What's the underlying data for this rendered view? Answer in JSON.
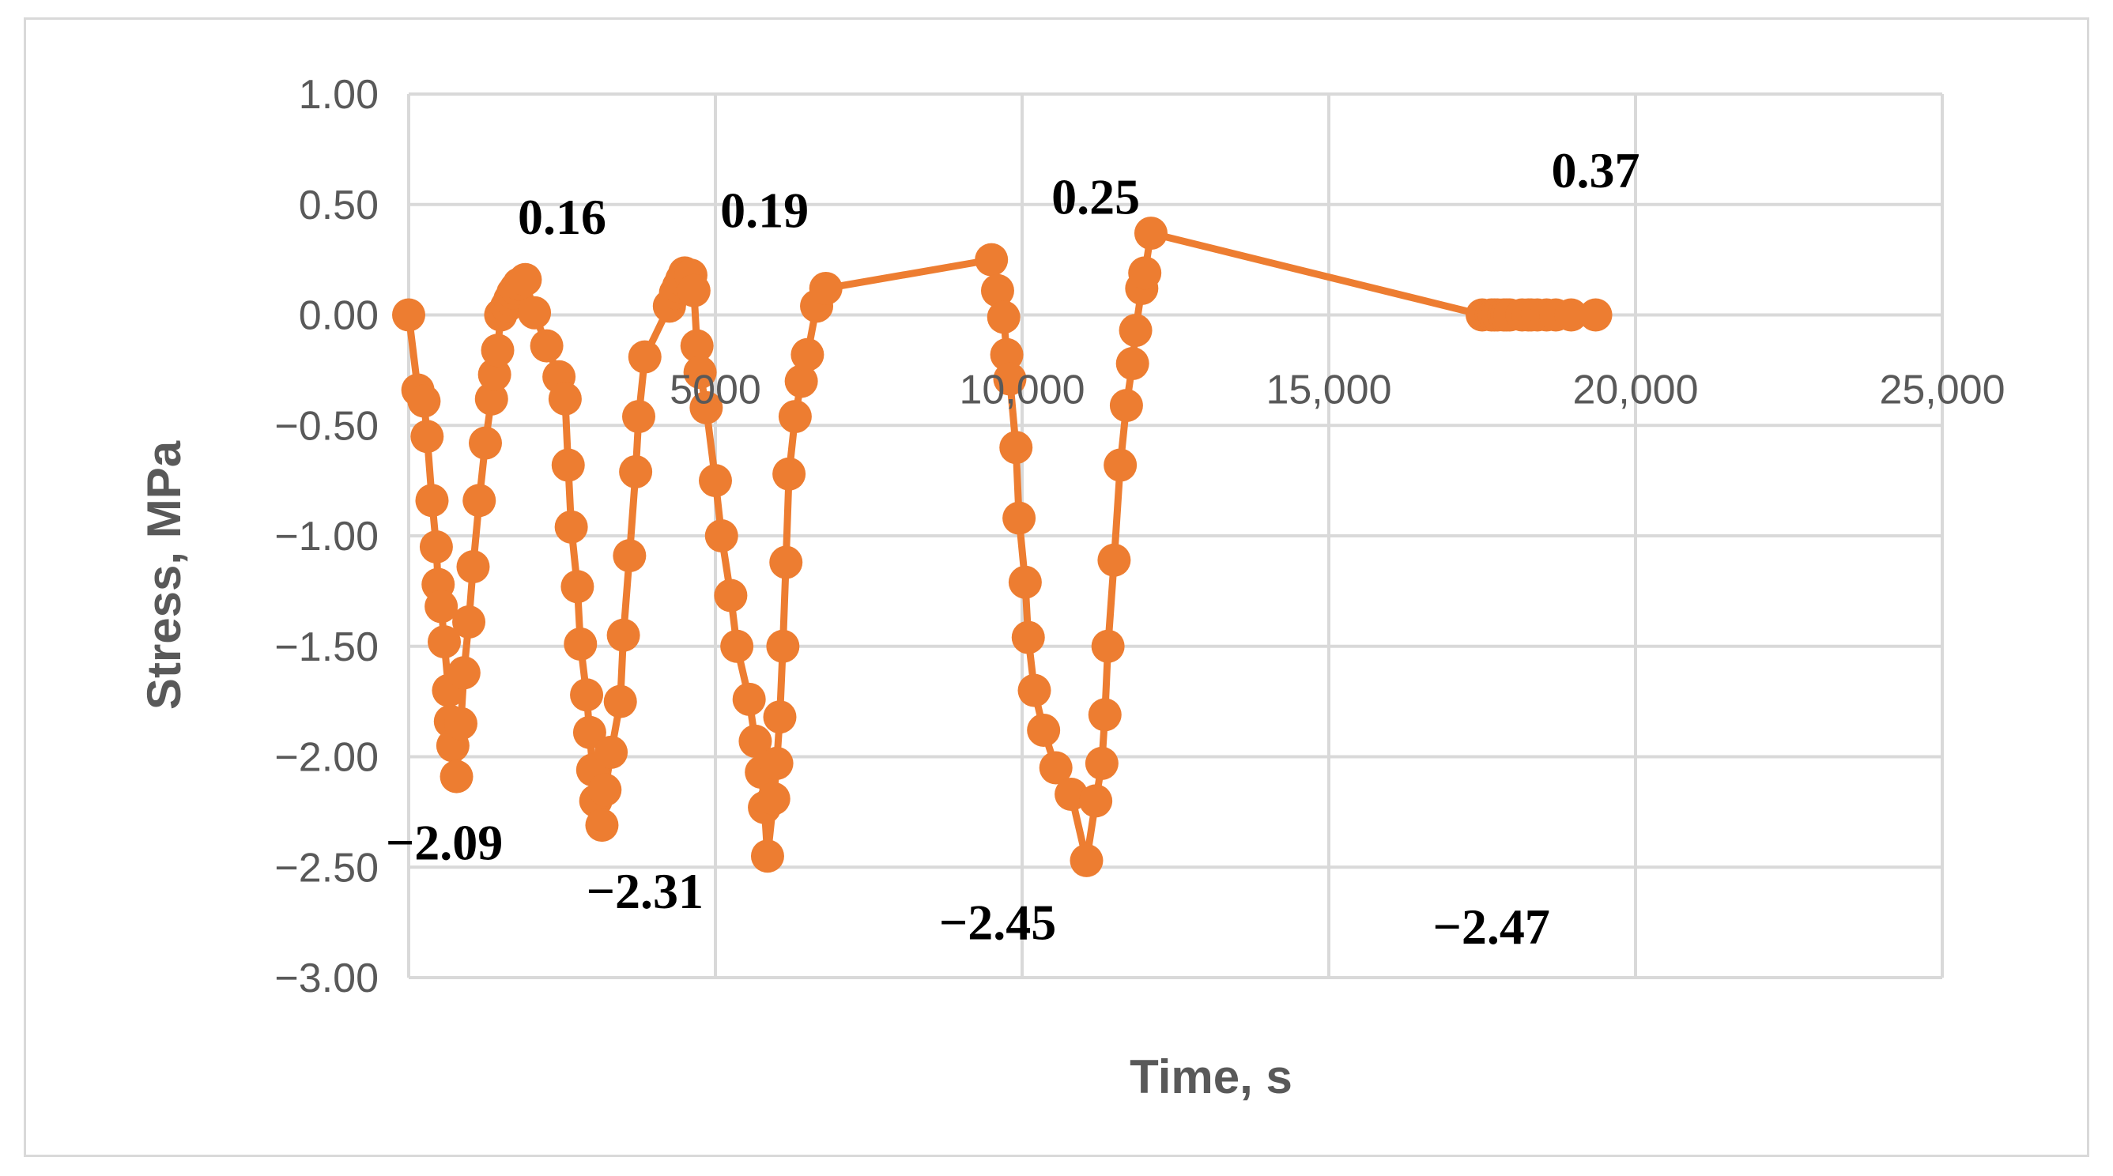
{
  "chart_data": {
    "type": "line",
    "title": "",
    "xlabel": "Time, s",
    "ylabel": "Stress, MPa",
    "xlim": [
      0,
      25000
    ],
    "ylim": [
      -3.0,
      1.0
    ],
    "grid": true,
    "legend": "none",
    "x_ticks": [
      {
        "value": 5000,
        "label": "5000"
      },
      {
        "value": 10000,
        "label": "10,000"
      },
      {
        "value": 15000,
        "label": "15,000"
      },
      {
        "value": 20000,
        "label": "20,000"
      },
      {
        "value": 25000,
        "label": "25,000"
      }
    ],
    "y_ticks": [
      {
        "value": 1.0,
        "label": "1.00"
      },
      {
        "value": 0.5,
        "label": "0.50"
      },
      {
        "value": 0.0,
        "label": "0.00"
      },
      {
        "value": -0.5,
        "label": "−0.50"
      },
      {
        "value": -1.0,
        "label": "−1.00"
      },
      {
        "value": -1.5,
        "label": "−1.50"
      },
      {
        "value": -2.0,
        "label": "−2.00"
      },
      {
        "value": -2.5,
        "label": "−2.50"
      },
      {
        "value": -3.0,
        "label": "−3.00"
      }
    ],
    "series": [
      {
        "color": "#ed7d31",
        "x": [
          0,
          150,
          250,
          300,
          380,
          450,
          480,
          530,
          580,
          650,
          680,
          720,
          780,
          850,
          900,
          980,
          1050,
          1150,
          1250,
          1350,
          1400,
          1450,
          1500,
          1600,
          1650,
          1700,
          1750,
          1800,
          1900,
          2050,
          2250,
          2450,
          2550,
          2600,
          2650,
          2750,
          2800,
          2900,
          2950,
          3000,
          3050,
          3150,
          3200,
          3300,
          3450,
          3500,
          3600,
          3700,
          3750,
          3850,
          4250,
          4350,
          4400,
          4450,
          4500,
          4600,
          4650,
          4700,
          4750,
          4850,
          5000,
          5100,
          5250,
          5350,
          5550,
          5650,
          5750,
          5800,
          5850,
          5950,
          6000,
          6050,
          6100,
          6150,
          6200,
          6300,
          6400,
          6500,
          6650,
          6800,
          9500,
          9600,
          9700,
          9750,
          9800,
          9900,
          9950,
          10050,
          10100,
          10200,
          10350,
          10550,
          10800,
          11050,
          11200,
          11300,
          11350,
          11400,
          11500,
          11600,
          11700,
          11800,
          11850,
          11950,
          12000,
          12100,
          17500,
          17650,
          17700,
          17750,
          17850,
          17900,
          17950,
          18150,
          18250,
          18300,
          18400,
          18550,
          18700,
          18950,
          19350
        ],
        "y": [
          0.0,
          -0.34,
          -0.39,
          -0.55,
          -0.84,
          -1.05,
          -1.22,
          -1.32,
          -1.48,
          -1.7,
          -1.84,
          -1.95,
          -2.09,
          -1.85,
          -1.62,
          -1.39,
          -1.14,
          -0.84,
          -0.58,
          -0.38,
          -0.27,
          -0.16,
          0.0,
          0.04,
          0.07,
          0.1,
          0.12,
          0.14,
          0.16,
          0.01,
          -0.14,
          -0.28,
          -0.38,
          -0.68,
          -0.96,
          -1.23,
          -1.49,
          -1.72,
          -1.89,
          -2.06,
          -2.2,
          -2.31,
          -2.15,
          -1.98,
          -1.75,
          -1.45,
          -1.09,
          -0.71,
          -0.46,
          -0.19,
          0.04,
          0.1,
          0.13,
          0.16,
          0.19,
          0.18,
          0.11,
          -0.14,
          -0.26,
          -0.42,
          -0.75,
          -1.0,
          -1.27,
          -1.5,
          -1.74,
          -1.93,
          -2.07,
          -2.23,
          -2.45,
          -2.19,
          -2.03,
          -1.82,
          -1.5,
          -1.12,
          -0.72,
          -0.46,
          -0.3,
          -0.18,
          0.04,
          0.12,
          0.25,
          0.11,
          -0.01,
          -0.18,
          -0.29,
          -0.6,
          -0.92,
          -1.21,
          -1.46,
          -1.7,
          -1.88,
          -2.05,
          -2.17,
          -2.47,
          -2.2,
          -2.03,
          -1.81,
          -1.5,
          -1.11,
          -0.68,
          -0.41,
          -0.22,
          -0.07,
          0.12,
          0.19,
          0.37,
          0.0,
          0.0,
          0.0,
          0.0,
          0.0,
          0.0,
          0.0,
          0.0,
          0.0,
          0.0,
          0.0,
          0.0,
          0.0,
          0.0,
          0.0
        ]
      }
    ],
    "annotations": [
      {
        "text": "0.16",
        "x": 2500,
        "y": 0.16,
        "anchor": "above"
      },
      {
        "text": "0.19",
        "x": 5800,
        "y": 0.19,
        "anchor": "above"
      },
      {
        "text": "0.25",
        "x": 11200,
        "y": 0.25,
        "anchor": "above"
      },
      {
        "text": "0.37",
        "x": 19350,
        "y": 0.37,
        "anchor": "above"
      },
      {
        "text": "−2.09",
        "x": 580,
        "y": -2.09,
        "anchor": "below"
      },
      {
        "text": "−2.31",
        "x": 3850,
        "y": -2.31,
        "anchor": "below"
      },
      {
        "text": "−2.45",
        "x": 9600,
        "y": -2.45,
        "anchor": "below"
      },
      {
        "text": "−2.47",
        "x": 17650,
        "y": -2.47,
        "anchor": "below"
      }
    ]
  }
}
